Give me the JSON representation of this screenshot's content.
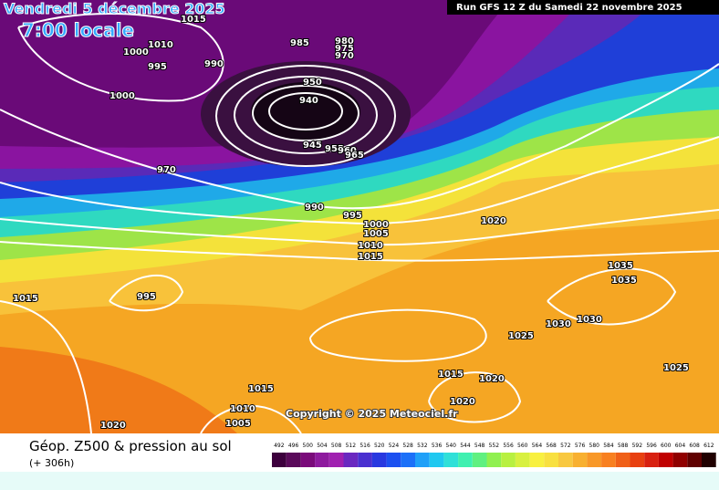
{
  "header": {
    "title": "Vendredi 5 décembre 2025",
    "time": "7:00 locale",
    "run": "Run GFS 12 Z du Samedi 22 novembre 2025"
  },
  "map": {
    "isobar_labels": [
      "1015",
      "985",
      "980",
      "975",
      "970",
      "1010",
      "1000",
      "995",
      "990",
      "950",
      "940",
      "945",
      "955",
      "960",
      "965",
      "1000",
      "970",
      "990",
      "995",
      "1000",
      "1005",
      "1010",
      "1015",
      "1020",
      "1035",
      "1035",
      "995",
      "1015",
      "1030",
      "1030",
      "1025",
      "1025",
      "1015",
      "1020",
      "1015",
      "1020",
      "1010",
      "1005",
      "1020"
    ],
    "copyright": "Copyright © 2025 Meteociel.fr"
  },
  "legend": {
    "title": "Géop. Z500 & pression au sol",
    "lead": "(+ 306h)",
    "scale": {
      "labels": [
        492,
        496,
        500,
        504,
        508,
        512,
        516,
        520,
        524,
        528,
        532,
        536,
        540,
        544,
        548,
        552,
        556,
        560,
        564,
        568,
        572,
        576,
        580,
        584,
        588,
        592,
        596,
        600,
        604,
        608,
        612
      ],
      "colors": [
        "#3d003d",
        "#5a0a5a",
        "#7a0a7a",
        "#8e1a9e",
        "#a020b0",
        "#6a28c0",
        "#4a30d0",
        "#2838e0",
        "#1c50f0",
        "#1c70f8",
        "#20a0f8",
        "#20c8f0",
        "#30e0d8",
        "#40f0b0",
        "#60f080",
        "#90f050",
        "#b8f040",
        "#d8f040",
        "#f8f040",
        "#f8e040",
        "#f8c840",
        "#f8b030",
        "#f89828",
        "#f88020",
        "#f06018",
        "#e84010",
        "#d82010",
        "#c00000",
        "#900000",
        "#600000",
        "#200000"
      ]
    }
  }
}
